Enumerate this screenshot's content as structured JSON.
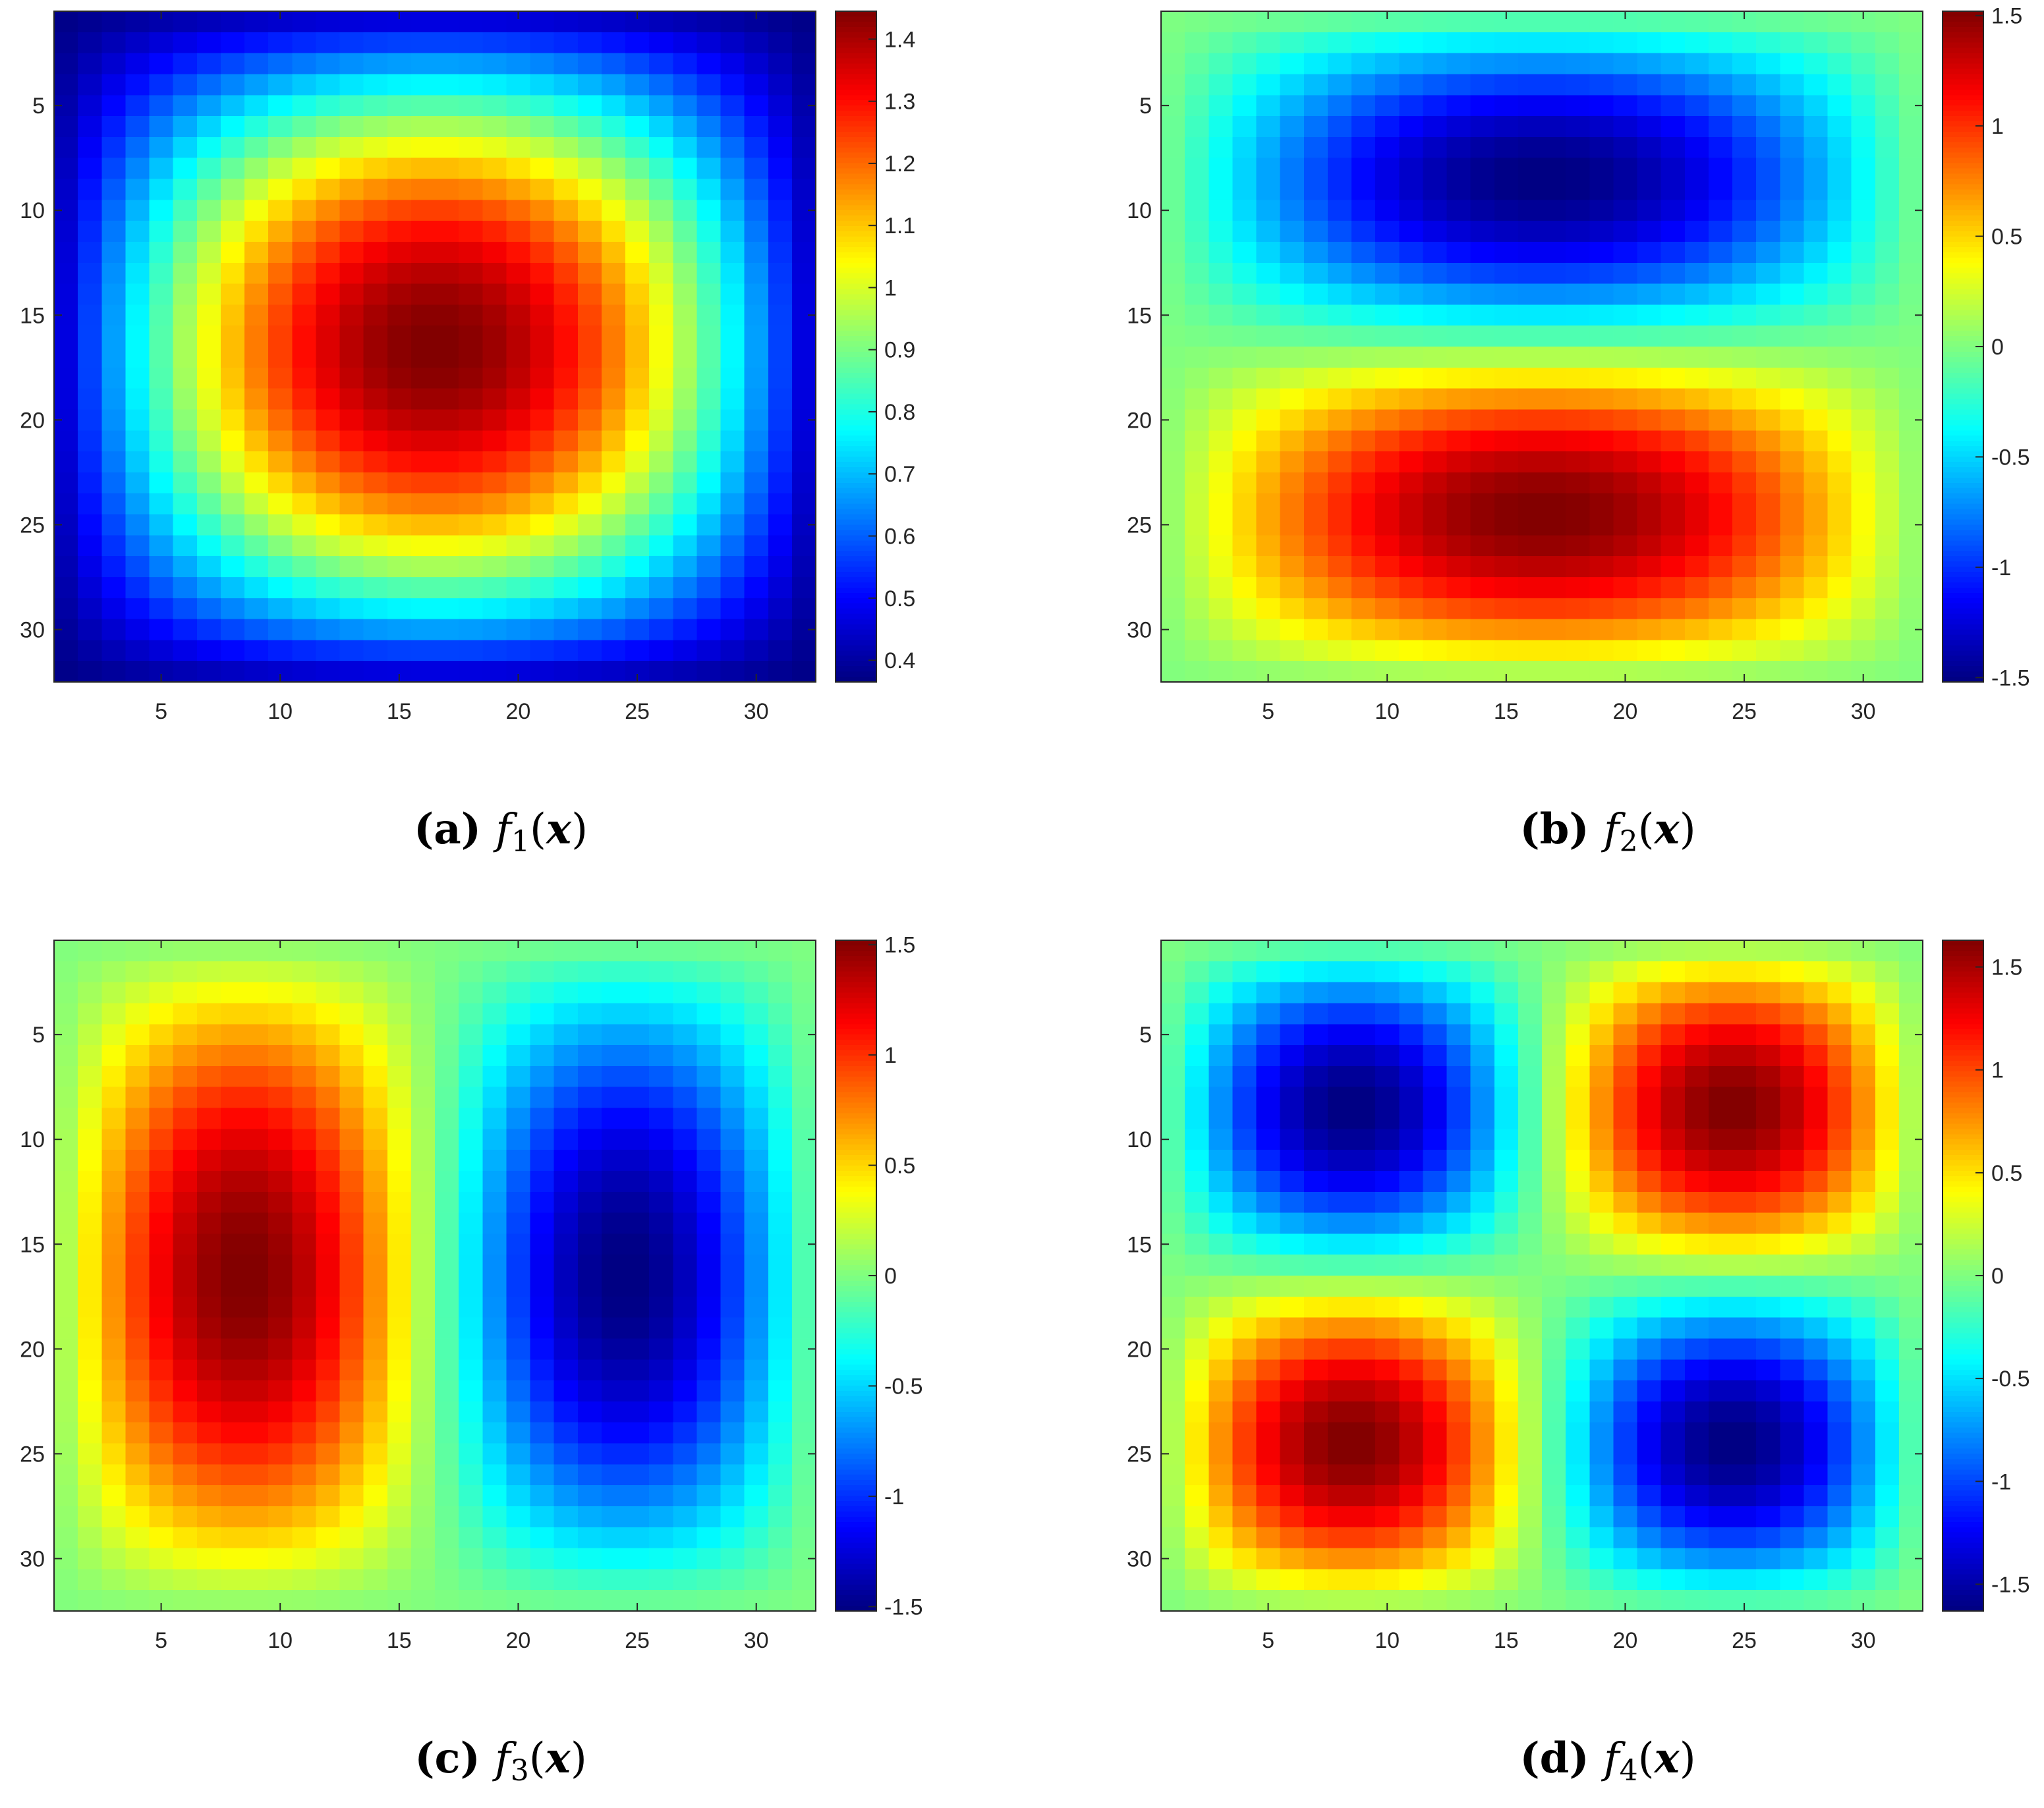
{
  "chart_data": [
    {
      "type": "heatmap",
      "function": "f1",
      "caption": {
        "label": "(a)",
        "f": "f",
        "sub": "1",
        "open": "(",
        "arg": "x",
        "close": ")"
      },
      "rows": 32,
      "cols": 32,
      "xlim": [
        0.5,
        32.5
      ],
      "ylim": [
        0.5,
        32.5
      ],
      "x_ticks": [
        5,
        10,
        15,
        20,
        25,
        30
      ],
      "y_ticks": [
        5,
        10,
        15,
        20,
        25,
        30
      ],
      "y_direction": "reversed",
      "colormap": "jet",
      "clim": [
        0.365,
        1.445
      ],
      "colorbar_ticks": [
        0.4,
        0.5,
        0.6,
        0.7,
        0.8,
        0.9,
        1,
        1.1,
        1.2,
        1.3,
        1.4
      ],
      "colorbar_labels": [
        "0.4",
        "0.5",
        "0.6",
        "0.7",
        "0.8",
        "0.9",
        "1",
        "1.1",
        "1.2",
        "1.3",
        "1.4"
      ],
      "value_model": {
        "form": "base + amp * cos(kx*(c - cx)) * cos(ky*(r - cy))",
        "base": 0.365,
        "amp": 1.08,
        "kx": 0.0952,
        "ky": 0.0952,
        "cx": 16.5,
        "cy": 16.5
      }
    },
    {
      "type": "heatmap",
      "function": "f2",
      "caption": {
        "label": "(b)",
        "f": "f",
        "sub": "2",
        "open": "(",
        "arg": "x",
        "close": ")"
      },
      "rows": 32,
      "cols": 32,
      "xlim": [
        0.5,
        32.5
      ],
      "ylim": [
        0.5,
        32.5
      ],
      "x_ticks": [
        5,
        10,
        15,
        20,
        25,
        30
      ],
      "y_ticks": [
        5,
        10,
        15,
        20,
        25,
        30
      ],
      "y_direction": "reversed",
      "colormap": "jet",
      "clim": [
        -1.52,
        1.52
      ],
      "colorbar_ticks": [
        -1.5,
        -1,
        -0.5,
        0,
        0.5,
        1,
        1.5
      ],
      "colorbar_labels": [
        "-1.5",
        "-1",
        "-0.5",
        "0",
        "0.5",
        "1",
        "1.5"
      ],
      "value_model": {
        "form": "amp * sin(pi*(c-0.5)/32) * sin(2*pi*(r-0.5)/32 + pi)",
        "amp": 1.52
      }
    },
    {
      "type": "heatmap",
      "function": "f3",
      "caption": {
        "label": "(c)",
        "f": "f",
        "sub": "3",
        "open": "(",
        "arg": "x",
        "close": ")"
      },
      "rows": 32,
      "cols": 32,
      "xlim": [
        0.5,
        32.5
      ],
      "ylim": [
        0.5,
        32.5
      ],
      "x_ticks": [
        5,
        10,
        15,
        20,
        25,
        30
      ],
      "y_ticks": [
        5,
        10,
        15,
        20,
        25,
        30
      ],
      "y_direction": "reversed",
      "colormap": "jet",
      "clim": [
        -1.52,
        1.52
      ],
      "colorbar_ticks": [
        -1.5,
        -1,
        -0.5,
        0,
        0.5,
        1,
        1.5
      ],
      "colorbar_labels": [
        "-1.5",
        "-1",
        "-0.5",
        "0",
        "0.5",
        "1",
        "1.5"
      ],
      "value_model": {
        "form": "amp * sin(2*pi*(c-0.5)/32) * sin(pi*(r-0.5)/32)",
        "amp": 1.52
      }
    },
    {
      "type": "heatmap",
      "function": "f4",
      "caption": {
        "label": "(d)",
        "f": "f",
        "sub": "4",
        "open": "(",
        "arg": "x",
        "close": ")"
      },
      "rows": 32,
      "cols": 32,
      "xlim": [
        0.5,
        32.5
      ],
      "ylim": [
        0.5,
        32.5
      ],
      "x_ticks": [
        5,
        10,
        15,
        20,
        25,
        30
      ],
      "y_ticks": [
        5,
        10,
        15,
        20,
        25,
        30
      ],
      "y_direction": "reversed",
      "colormap": "jet",
      "clim": [
        -1.63,
        1.63
      ],
      "colorbar_ticks": [
        -1.5,
        -1,
        -0.5,
        0,
        0.5,
        1,
        1.5
      ],
      "colorbar_labels": [
        "-1.5",
        "-1",
        "-0.5",
        "0",
        "0.5",
        "1",
        "1.5"
      ],
      "value_model": {
        "form": "amp * sin(2*pi*(c-0.5)/32 + pi) * sin(2*pi*(r-0.5)/32)",
        "amp": 1.63
      }
    }
  ]
}
